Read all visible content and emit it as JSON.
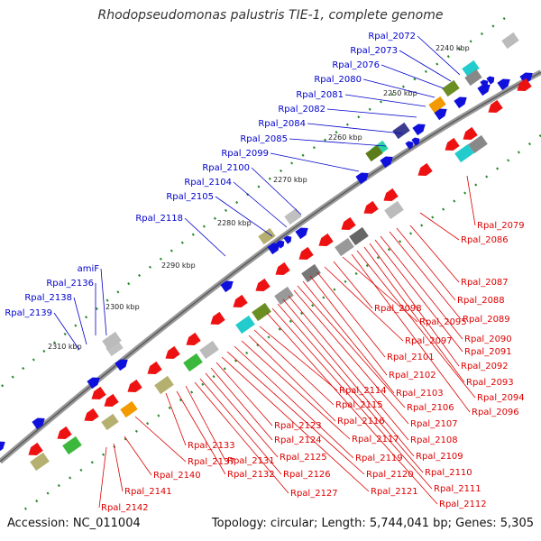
{
  "title": "Rhodopseudomonas palustris TIE-1, complete genome",
  "footer": {
    "accession": "Accession: NC_011004",
    "summary": "Topology: circular; Length: 5,744,041 bp; Genes: 5,305"
  },
  "colors": {
    "plus_strand": "#1010dd",
    "minus_strand": "#ee1111",
    "plus_label": "#0000cc",
    "minus_label": "#dd0000",
    "backbone": "#888888",
    "tick": "#228822"
  },
  "kbp_ticks": [
    "2240 kbp",
    "2250 kbp",
    "2260 kbp",
    "2270 kbp",
    "2280 kbp",
    "2290 kbp",
    "2300 kbp",
    "2310 kbp"
  ],
  "plus_labels": [
    "Rpal_2072",
    "Rpal_2073",
    "Rpal_2076",
    "Rpal_2080",
    "Rpal_2081",
    "Rpal_2082",
    "Rpal_2084",
    "Rpal_2085",
    "Rpal_2099",
    "Rpal_2100",
    "Rpal_2104",
    "Rpal_2105",
    "Rpal_2118",
    "amiF",
    "Rpal_2136",
    "Rpal_2138",
    "Rpal_2139"
  ],
  "minus_labels_right": [
    "Rpal_2079",
    "Rpal_2086",
    "Rpal_2087",
    "Rpal_2088",
    "Rpal_2089",
    "Rpal_2090",
    "Rpal_2091",
    "Rpal_2092",
    "Rpal_2093",
    "Rpal_2094",
    "Rpal_2096",
    "Rpal_2098",
    "Rpal_2095",
    "Rpal_2097",
    "Rpal_2101",
    "Rpal_2102",
    "Rpal_2103",
    "Rpal_2106",
    "Rpal_2107",
    "Rpal_2108",
    "Rpal_2109",
    "Rpal_2110",
    "Rpal_2111",
    "Rpal_2112"
  ],
  "minus_labels_bottom": [
    "Rpal_2114",
    "Rpal_2115",
    "Rpal_2116",
    "Rpal_2117",
    "Rpal_2119",
    "Rpal_2120",
    "Rpal_2121",
    "Rpal_2123",
    "Rpal_2124",
    "Rpal_2125",
    "Rpal_2126",
    "Rpal_2127",
    "Rpal_2131",
    "Rpal_2132",
    "Rpal_2133",
    "Rpal_2137",
    "Rpal_2140",
    "Rpal_2141",
    "Rpal_2142"
  ]
}
